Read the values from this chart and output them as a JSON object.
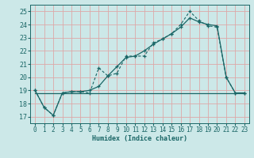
{
  "xlabel": "Humidex (Indice chaleur)",
  "bg_color": "#cce8e8",
  "grid_color": "#dda8a8",
  "line_color": "#1a6666",
  "xlim": [
    -0.5,
    23.5
  ],
  "ylim": [
    16.5,
    25.5
  ],
  "xticks": [
    0,
    1,
    2,
    3,
    4,
    5,
    6,
    7,
    8,
    9,
    10,
    11,
    12,
    13,
    14,
    15,
    16,
    17,
    18,
    19,
    20,
    21,
    22,
    23
  ],
  "yticks": [
    17,
    18,
    19,
    20,
    21,
    22,
    23,
    24,
    25
  ],
  "line1_x": [
    0,
    1,
    2,
    3,
    4,
    5,
    6,
    7,
    8,
    9,
    10,
    11,
    12,
    13,
    14,
    15,
    16,
    17,
    18,
    19,
    20,
    21,
    22,
    23
  ],
  "line1_y": [
    19.0,
    17.7,
    17.1,
    18.8,
    18.9,
    18.9,
    18.8,
    20.7,
    20.1,
    20.3,
    21.6,
    21.6,
    21.6,
    22.6,
    22.9,
    23.3,
    24.0,
    25.0,
    24.3,
    23.9,
    23.8,
    20.0,
    18.8,
    18.8
  ],
  "line2_x": [
    0,
    1,
    2,
    3,
    4,
    5,
    6,
    7,
    8,
    9,
    10,
    11,
    12,
    13,
    14,
    15,
    16,
    17,
    18,
    19,
    20,
    21,
    22,
    23
  ],
  "line2_y": [
    19.0,
    17.7,
    17.1,
    18.8,
    18.9,
    18.9,
    19.0,
    19.3,
    20.1,
    20.8,
    21.5,
    21.6,
    22.0,
    22.5,
    22.9,
    23.3,
    23.8,
    24.5,
    24.2,
    24.0,
    23.9,
    20.0,
    18.8,
    18.8
  ],
  "line3_x": [
    0,
    7,
    20,
    23
  ],
  "line3_y": [
    18.8,
    18.8,
    18.8,
    18.8
  ],
  "xlabel_fontsize": 6.0,
  "tick_fontsize": 5.5
}
